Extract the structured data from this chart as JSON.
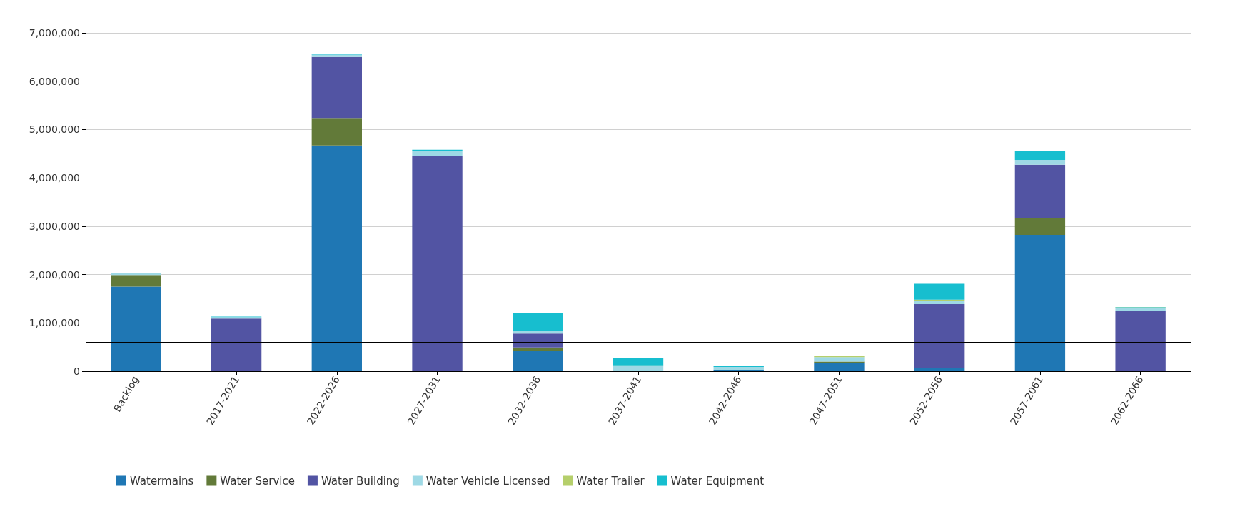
{
  "chart_data": {
    "type": "bar",
    "stacked": true,
    "categories": [
      "Backlog",
      "2017-2021",
      "2022-2026",
      "2027-2031",
      "2032-2036",
      "2037-2041",
      "2042-2046",
      "2047-2051",
      "2052-2056",
      "2057-2061",
      "2062-2066"
    ],
    "series": [
      {
        "name": "Watermains",
        "color": "#1f77b4",
        "values": [
          1750000,
          0,
          4670000,
          0,
          420000,
          0,
          30000,
          170000,
          60000,
          2820000,
          0
        ]
      },
      {
        "name": "Water Service",
        "color": "#627a39",
        "values": [
          240000,
          0,
          570000,
          0,
          70000,
          0,
          0,
          30000,
          0,
          350000,
          0
        ]
      },
      {
        "name": "Water Building",
        "color": "#5254a3",
        "values": [
          0,
          1090000,
          1260000,
          4450000,
          290000,
          0,
          0,
          0,
          1330000,
          1100000,
          1250000
        ]
      },
      {
        "name": "Water Vehicle Licensed",
        "color": "#9ed9e5",
        "values": [
          40000,
          30000,
          50000,
          110000,
          60000,
          110000,
          60000,
          90000,
          70000,
          100000,
          50000
        ]
      },
      {
        "name": "Water Trailer",
        "color": "#b5cf6b",
        "values": [
          0,
          0,
          0,
          0,
          0,
          10000,
          0,
          20000,
          20000,
          0,
          20000
        ]
      },
      {
        "name": "Water Equipment",
        "color": "#17becf",
        "values": [
          0,
          10000,
          20000,
          20000,
          360000,
          160000,
          20000,
          0,
          330000,
          180000,
          10000
        ]
      }
    ],
    "ylim": [
      0,
      7000000
    ],
    "yticks": [
      0,
      {
        "value": 1000000,
        "label": "1,000,000"
      },
      {
        "value": 2000000,
        "label": "2,000,000"
      },
      {
        "value": 3000000,
        "label": "3,000,000"
      },
      {
        "value": 4000000,
        "label": "4,000,000"
      },
      {
        "value": 5000000,
        "label": "5,000,000"
      },
      {
        "value": 6000000,
        "label": "6,000,000"
      },
      {
        "value": 7000000,
        "label": "7,000,000"
      }
    ],
    "ref_lines": [
      {
        "axis": "y",
        "value": 600000,
        "color": "#000000"
      }
    ],
    "grid": "y",
    "legend": "bottom"
  }
}
